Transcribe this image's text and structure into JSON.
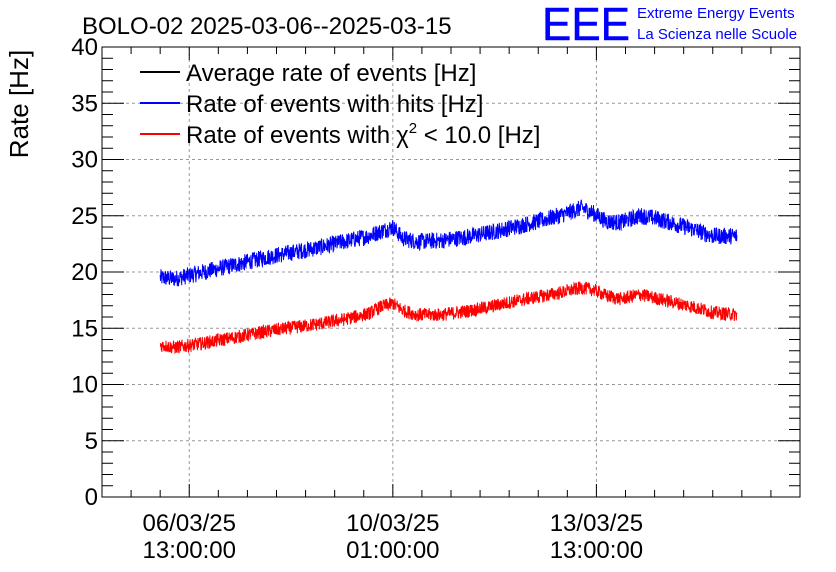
{
  "chart_data": {
    "type": "line",
    "title": "BOLO-02 2025-03-06--2025-03-15",
    "ylabel": "Rate [Hz]",
    "xlabel": "",
    "ylim": [
      0,
      40
    ],
    "yticks": [
      "0",
      "5",
      "10",
      "15",
      "20",
      "25",
      "30",
      "35",
      "40"
    ],
    "xticks": [
      {
        "date": "06/03/25",
        "time": "13:00:00",
        "hours": 36
      },
      {
        "date": "10/03/25",
        "time": "01:00:00",
        "hours": 120
      },
      {
        "date": "13/03/25",
        "time": "13:00:00",
        "hours": 204
      }
    ],
    "x_range_hours": [
      0,
      288
    ],
    "data_range_hours": [
      24,
      262
    ],
    "grid": true,
    "legend_position": "top-left",
    "series": [
      {
        "name": "Average rate of events [Hz]",
        "legend_label": "Average rate of events [Hz]",
        "color": "#000000",
        "points": []
      },
      {
        "name": "Rate of events with hits [Hz]",
        "legend_label": "Rate of events with hits [Hz]",
        "color": "#0000ff",
        "noise": 0.75,
        "points": [
          [
            24,
            19.5
          ],
          [
            30,
            19.4
          ],
          [
            40,
            19.9
          ],
          [
            50,
            20.4
          ],
          [
            60,
            20.9
          ],
          [
            70,
            21.4
          ],
          [
            80,
            21.8
          ],
          [
            90,
            22.2
          ],
          [
            100,
            22.7
          ],
          [
            110,
            23.2
          ],
          [
            115,
            23.6
          ],
          [
            120,
            24.0
          ],
          [
            124,
            23.0
          ],
          [
            130,
            22.7
          ],
          [
            140,
            22.8
          ],
          [
            150,
            23.1
          ],
          [
            160,
            23.5
          ],
          [
            170,
            24.0
          ],
          [
            180,
            24.5
          ],
          [
            190,
            25.1
          ],
          [
            198,
            25.7
          ],
          [
            203,
            25.2
          ],
          [
            208,
            24.5
          ],
          [
            214,
            24.4
          ],
          [
            222,
            25.0
          ],
          [
            228,
            24.8
          ],
          [
            236,
            24.3
          ],
          [
            244,
            23.8
          ],
          [
            252,
            23.2
          ],
          [
            262,
            23.2
          ]
        ]
      },
      {
        "name": "Rate of events with chi2 < 10.0 [Hz]",
        "legend_label": "Rate of events with",
        "legend_chi": "χ",
        "legend_sup": "2",
        "legend_tail": " < 10.0 [Hz]",
        "color": "#ff0000",
        "noise": 0.6,
        "points": [
          [
            24,
            13.5
          ],
          [
            30,
            13.3
          ],
          [
            40,
            13.6
          ],
          [
            50,
            14.0
          ],
          [
            60,
            14.4
          ],
          [
            70,
            14.8
          ],
          [
            80,
            15.1
          ],
          [
            90,
            15.4
          ],
          [
            100,
            15.8
          ],
          [
            110,
            16.3
          ],
          [
            115,
            16.9
          ],
          [
            120,
            17.2
          ],
          [
            124,
            16.6
          ],
          [
            130,
            16.2
          ],
          [
            140,
            16.2
          ],
          [
            150,
            16.5
          ],
          [
            160,
            16.9
          ],
          [
            170,
            17.4
          ],
          [
            180,
            17.8
          ],
          [
            190,
            18.2
          ],
          [
            198,
            18.6
          ],
          [
            203,
            18.4
          ],
          [
            208,
            17.9
          ],
          [
            214,
            17.6
          ],
          [
            222,
            18.0
          ],
          [
            228,
            17.7
          ],
          [
            236,
            17.3
          ],
          [
            244,
            16.9
          ],
          [
            252,
            16.4
          ],
          [
            262,
            16.2
          ]
        ]
      }
    ]
  },
  "logo": {
    "mark": "EEE",
    "line1": "Extreme Energy Events",
    "line2": "La Scienza nelle Scuole",
    "color": "#0000ff"
  }
}
